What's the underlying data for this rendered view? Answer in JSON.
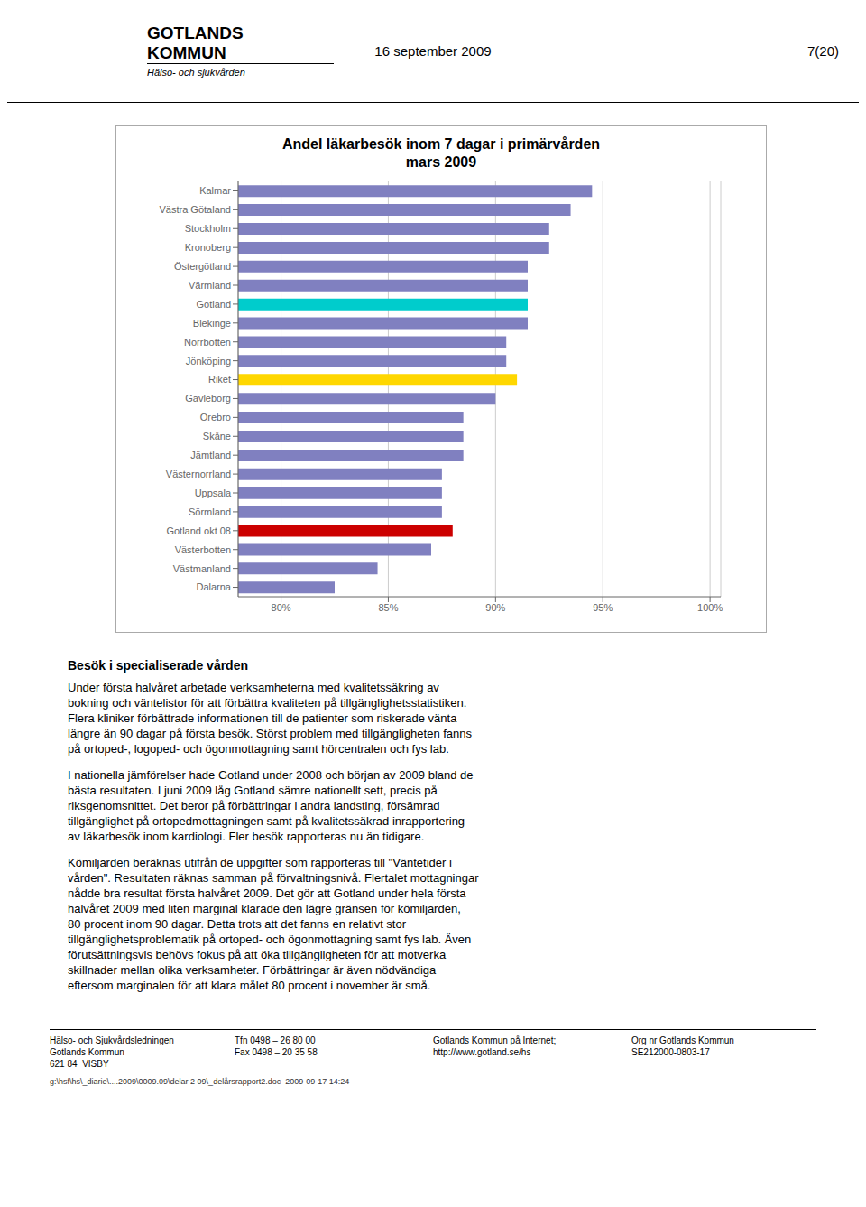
{
  "chart_data": {
    "type": "bar",
    "orientation": "horizontal",
    "title": "Andel läkarbesök inom 7 dagar i primärvården\nmars 2009",
    "categories": [
      "Kalmar",
      "Västra Götaland",
      "Stockholm",
      "Kronoberg",
      "Östergötland",
      "Värmland",
      "Gotland",
      "Blekinge",
      "Norrbotten",
      "Jönköping",
      "Riket",
      "Gävleborg",
      "Örebro",
      "Skåne",
      "Jämtland",
      "Västernorrland",
      "Uppsala",
      "Sörmland",
      "Gotland okt 08",
      "Västerbotten",
      "Västmanland",
      "Dalarna"
    ],
    "values": [
      0.945,
      0.935,
      0.925,
      0.925,
      0.915,
      0.915,
      0.915,
      0.915,
      0.905,
      0.905,
      0.91,
      0.9,
      0.885,
      0.885,
      0.885,
      0.875,
      0.875,
      0.875,
      0.88,
      0.87,
      0.845,
      0.825
    ],
    "colors": [
      "#8080C0",
      "#8080C0",
      "#8080C0",
      "#8080C0",
      "#8080C0",
      "#8080C0",
      "#00CCCC",
      "#8080C0",
      "#8080C0",
      "#8080C0",
      "#FFD700",
      "#8080C0",
      "#8080C0",
      "#8080C0",
      "#8080C0",
      "#8080C0",
      "#8080C0",
      "#8080C0",
      "#CC0000",
      "#8080C0",
      "#8080C0",
      "#8080C0"
    ],
    "xlim": [
      0.78,
      1.005
    ],
    "xticks": [
      {
        "value": 0.8,
        "label": "80%"
      },
      {
        "value": 0.85,
        "label": "85%"
      },
      {
        "value": 0.9,
        "label": "90%"
      },
      {
        "value": 0.95,
        "label": "95%"
      },
      {
        "value": 1.0,
        "label": "100%"
      }
    ],
    "grid": true,
    "annotations": [
      "GOTLANDS",
      "KOMMUN",
      "Hälso- och sjukvården",
      "16 september 2009",
      "7(20)",
      "Besök i specialiserade vården",
      "Under första halvåret arbetade verksamheterna med kvalitetssäkring av",
      "bokning och väntelistor för att förbättra kvaliteten på tillgänglighetsstatistiken.",
      "Flera kliniker förbättrade informationen till de patienter som riskerade vänta",
      "längre än 90 dagar på första besök. Störst problem med tillgängligheten fanns",
      "på ortoped-, logoped- och ögonmottagning samt hörcentralen och fys lab.",
      "I nationella jämförelser hade Gotland under 2008 och början av 2009 bland de",
      "bästa resultaten. I juni 2009 låg Gotland sämre nationellt sett, precis på",
      "riksgenomsnittet. Det beror på förbättringar i andra landsting, försämrad",
      "tillgänglighet på ortopedmottagningen samt på kvalitetssäkrad inrapportering",
      "av läkarbesök inom kardiologi. Fler besök rapporteras nu än tidigare.",
      "Kömiljarden beräknas utifrån de uppgifter som rapporteras till \"Väntetider i",
      "vården\". Resultaten räknas samman på förvaltningsnivå. Flertalet mottagningar",
      "nådde bra resultat första halvåret 2009. Det gör att Gotland under hela första",
      "halvåret 2009 med liten marginal klarade den lägre gränsen för kömiljarden,",
      "80 procent inom 90 dagar. Detta trots att det fanns en relativt stor",
      "tillgänglighetsproblematik på ortoped- och ögonmottagning samt fys lab. Även",
      "förutsättningsvis behövs fokus på att öka tillgängligheten för att motverka",
      "skillnader mellan olika verksamheter. Förbättringar är även nödvändiga",
      "eftersom marginalen för att klara målet 80 procent i november är små.",
      "Hälso- och Sjukvårdsledningen",
      "Gotlands Kommun",
      "621 84  VISBY",
      "Tfn 0498 – 26 80 00",
      "Fax 0498 – 20 35 58",
      "Gotlands Kommun på Internet;",
      "http://www.gotland.se/hs",
      "Org nr Gotlands Kommun",
      "SE212000-0803-17",
      "g:\\hsf\\hs\\_diarie\\....2009\\0009.09\\delar 2 09\\_delårsrapport2.doc  2009-09-17 14:24"
    ]
  }
}
